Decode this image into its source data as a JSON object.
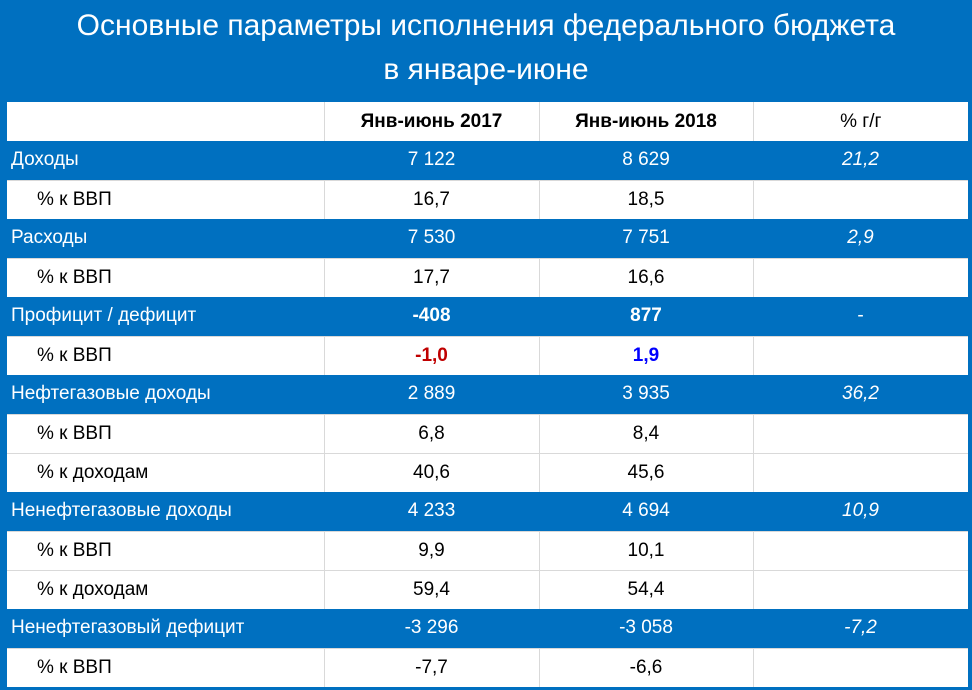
{
  "title": {
    "line1": "Основные параметры исполнения федерального бюджета",
    "line2": "в январе-июне"
  },
  "header": {
    "col0": "",
    "col1": "Янв-июнь 2017",
    "col2": "Янв-июнь 2018",
    "col3": "% г/г"
  },
  "rows": [
    {
      "label": "Доходы",
      "v2017": "7 122",
      "v2018": "8 629",
      "yoy": "21,2"
    },
    {
      "label": "% к ВВП",
      "v2017": "16,7",
      "v2018": "18,5",
      "yoy": ""
    },
    {
      "label": "Расходы",
      "v2017": "7 530",
      "v2018": "7 751",
      "yoy": "2,9"
    },
    {
      "label": "% к ВВП",
      "v2017": "17,7",
      "v2018": "16,6",
      "yoy": ""
    },
    {
      "label": "Профицит / дефицит",
      "v2017": "-408",
      "v2018": "877",
      "yoy": "-"
    },
    {
      "label": "% к ВВП",
      "v2017": "-1,0",
      "v2018": "1,9",
      "yoy": ""
    },
    {
      "label": "Нефтегазовые доходы",
      "v2017": "2 889",
      "v2018": "3 935",
      "yoy": "36,2"
    },
    {
      "label": "% к ВВП",
      "v2017": "6,8",
      "v2018": "8,4",
      "yoy": ""
    },
    {
      "label": "% к доходам",
      "v2017": "40,6",
      "v2018": "45,6",
      "yoy": ""
    },
    {
      "label": "Ненефтегазовые доходы",
      "v2017": "4 233",
      "v2018": "4 694",
      "yoy": "10,9"
    },
    {
      "label": "% к ВВП",
      "v2017": "9,9",
      "v2018": "10,1",
      "yoy": ""
    },
    {
      "label": "% к доходам",
      "v2017": "59,4",
      "v2018": "54,4",
      "yoy": ""
    },
    {
      "label": "Ненефтегазовый дефицит",
      "v2017": "-3 296",
      "v2018": "-3 058",
      "yoy": "-7,2"
    },
    {
      "label": "% к ВВП",
      "v2017": "-7,7",
      "v2018": "-6,6",
      "yoy": ""
    }
  ],
  "colors": {
    "background": "#0070c0",
    "negative_highlight": "#c00000",
    "positive_highlight": "#0000ff"
  }
}
